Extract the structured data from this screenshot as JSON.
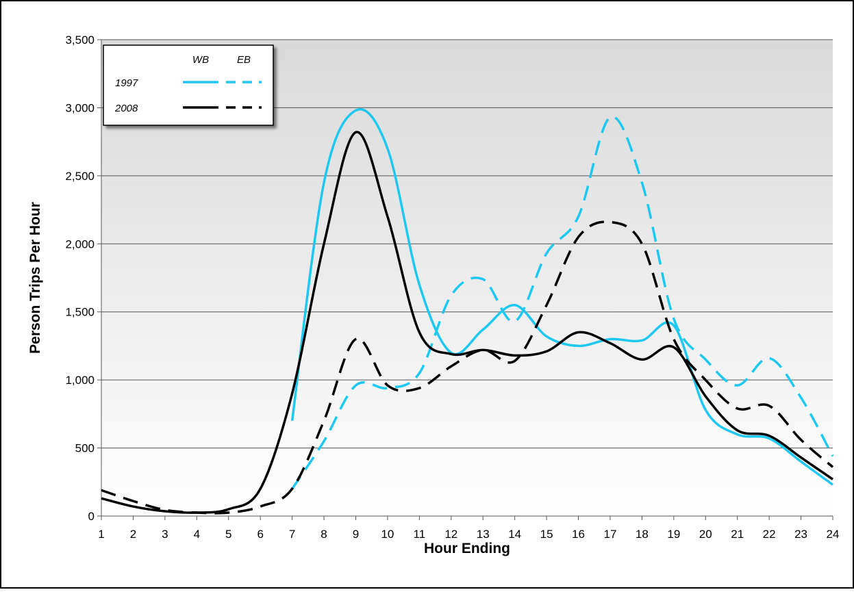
{
  "chart_data": {
    "type": "line",
    "x_label": "Hour Ending",
    "y_label": "Person Trips Per Hour",
    "x": [
      1,
      2,
      3,
      4,
      5,
      6,
      7,
      8,
      9,
      10,
      11,
      12,
      13,
      14,
      15,
      16,
      17,
      18,
      19,
      20,
      21,
      22,
      23,
      24
    ],
    "xlim": [
      1,
      24
    ],
    "xticks": [
      1,
      2,
      3,
      4,
      5,
      6,
      7,
      8,
      9,
      10,
      11,
      12,
      13,
      14,
      15,
      16,
      17,
      18,
      19,
      20,
      21,
      22,
      23,
      24
    ],
    "ylim": [
      0,
      3500
    ],
    "yticks": [
      0,
      500,
      {
        "value": 1000,
        "label": "1,000"
      },
      {
        "value": 1500,
        "label": "1,500"
      },
      {
        "value": 2000,
        "label": "2,000"
      },
      {
        "value": 2500,
        "label": "2,500"
      },
      {
        "value": 3000,
        "label": "3,000"
      },
      {
        "value": 3500,
        "label": "3,500"
      }
    ],
    "grid": true,
    "smooth": true,
    "legend": {
      "position": "upper left",
      "columns": [
        "WB",
        "EB"
      ],
      "rows": [
        "1997",
        "2008"
      ]
    },
    "series": [
      {
        "color": "#1ec8f0",
        "dashed": false,
        "values": [
          null,
          null,
          null,
          null,
          null,
          null,
          700,
          2450,
          2980,
          2700,
          1700,
          1200,
          1370,
          1550,
          1320,
          1250,
          1300,
          1290,
          1400,
          780,
          600,
          570,
          400,
          230
        ]
      },
      {
        "color": "#1ec8f0",
        "dashed": true,
        "values": [
          null,
          null,
          null,
          null,
          null,
          null,
          200,
          550,
          960,
          940,
          1050,
          1620,
          1740,
          1430,
          1930,
          2200,
          2930,
          2450,
          1450,
          1150,
          960,
          1160,
          870,
          440
        ]
      },
      {
        "color": "#000000",
        "dashed": false,
        "values": [
          130,
          70,
          35,
          25,
          50,
          200,
          900,
          2000,
          2820,
          2200,
          1350,
          1190,
          1220,
          1180,
          1210,
          1350,
          1270,
          1150,
          1240,
          880,
          630,
          590,
          430,
          270
        ]
      },
      {
        "color": "#000000",
        "dashed": true,
        "values": [
          190,
          110,
          45,
          25,
          25,
          70,
          200,
          700,
          1300,
          960,
          940,
          1100,
          1220,
          1140,
          1550,
          2050,
          2160,
          2000,
          1300,
          1000,
          790,
          810,
          560,
          360
        ]
      }
    ]
  }
}
